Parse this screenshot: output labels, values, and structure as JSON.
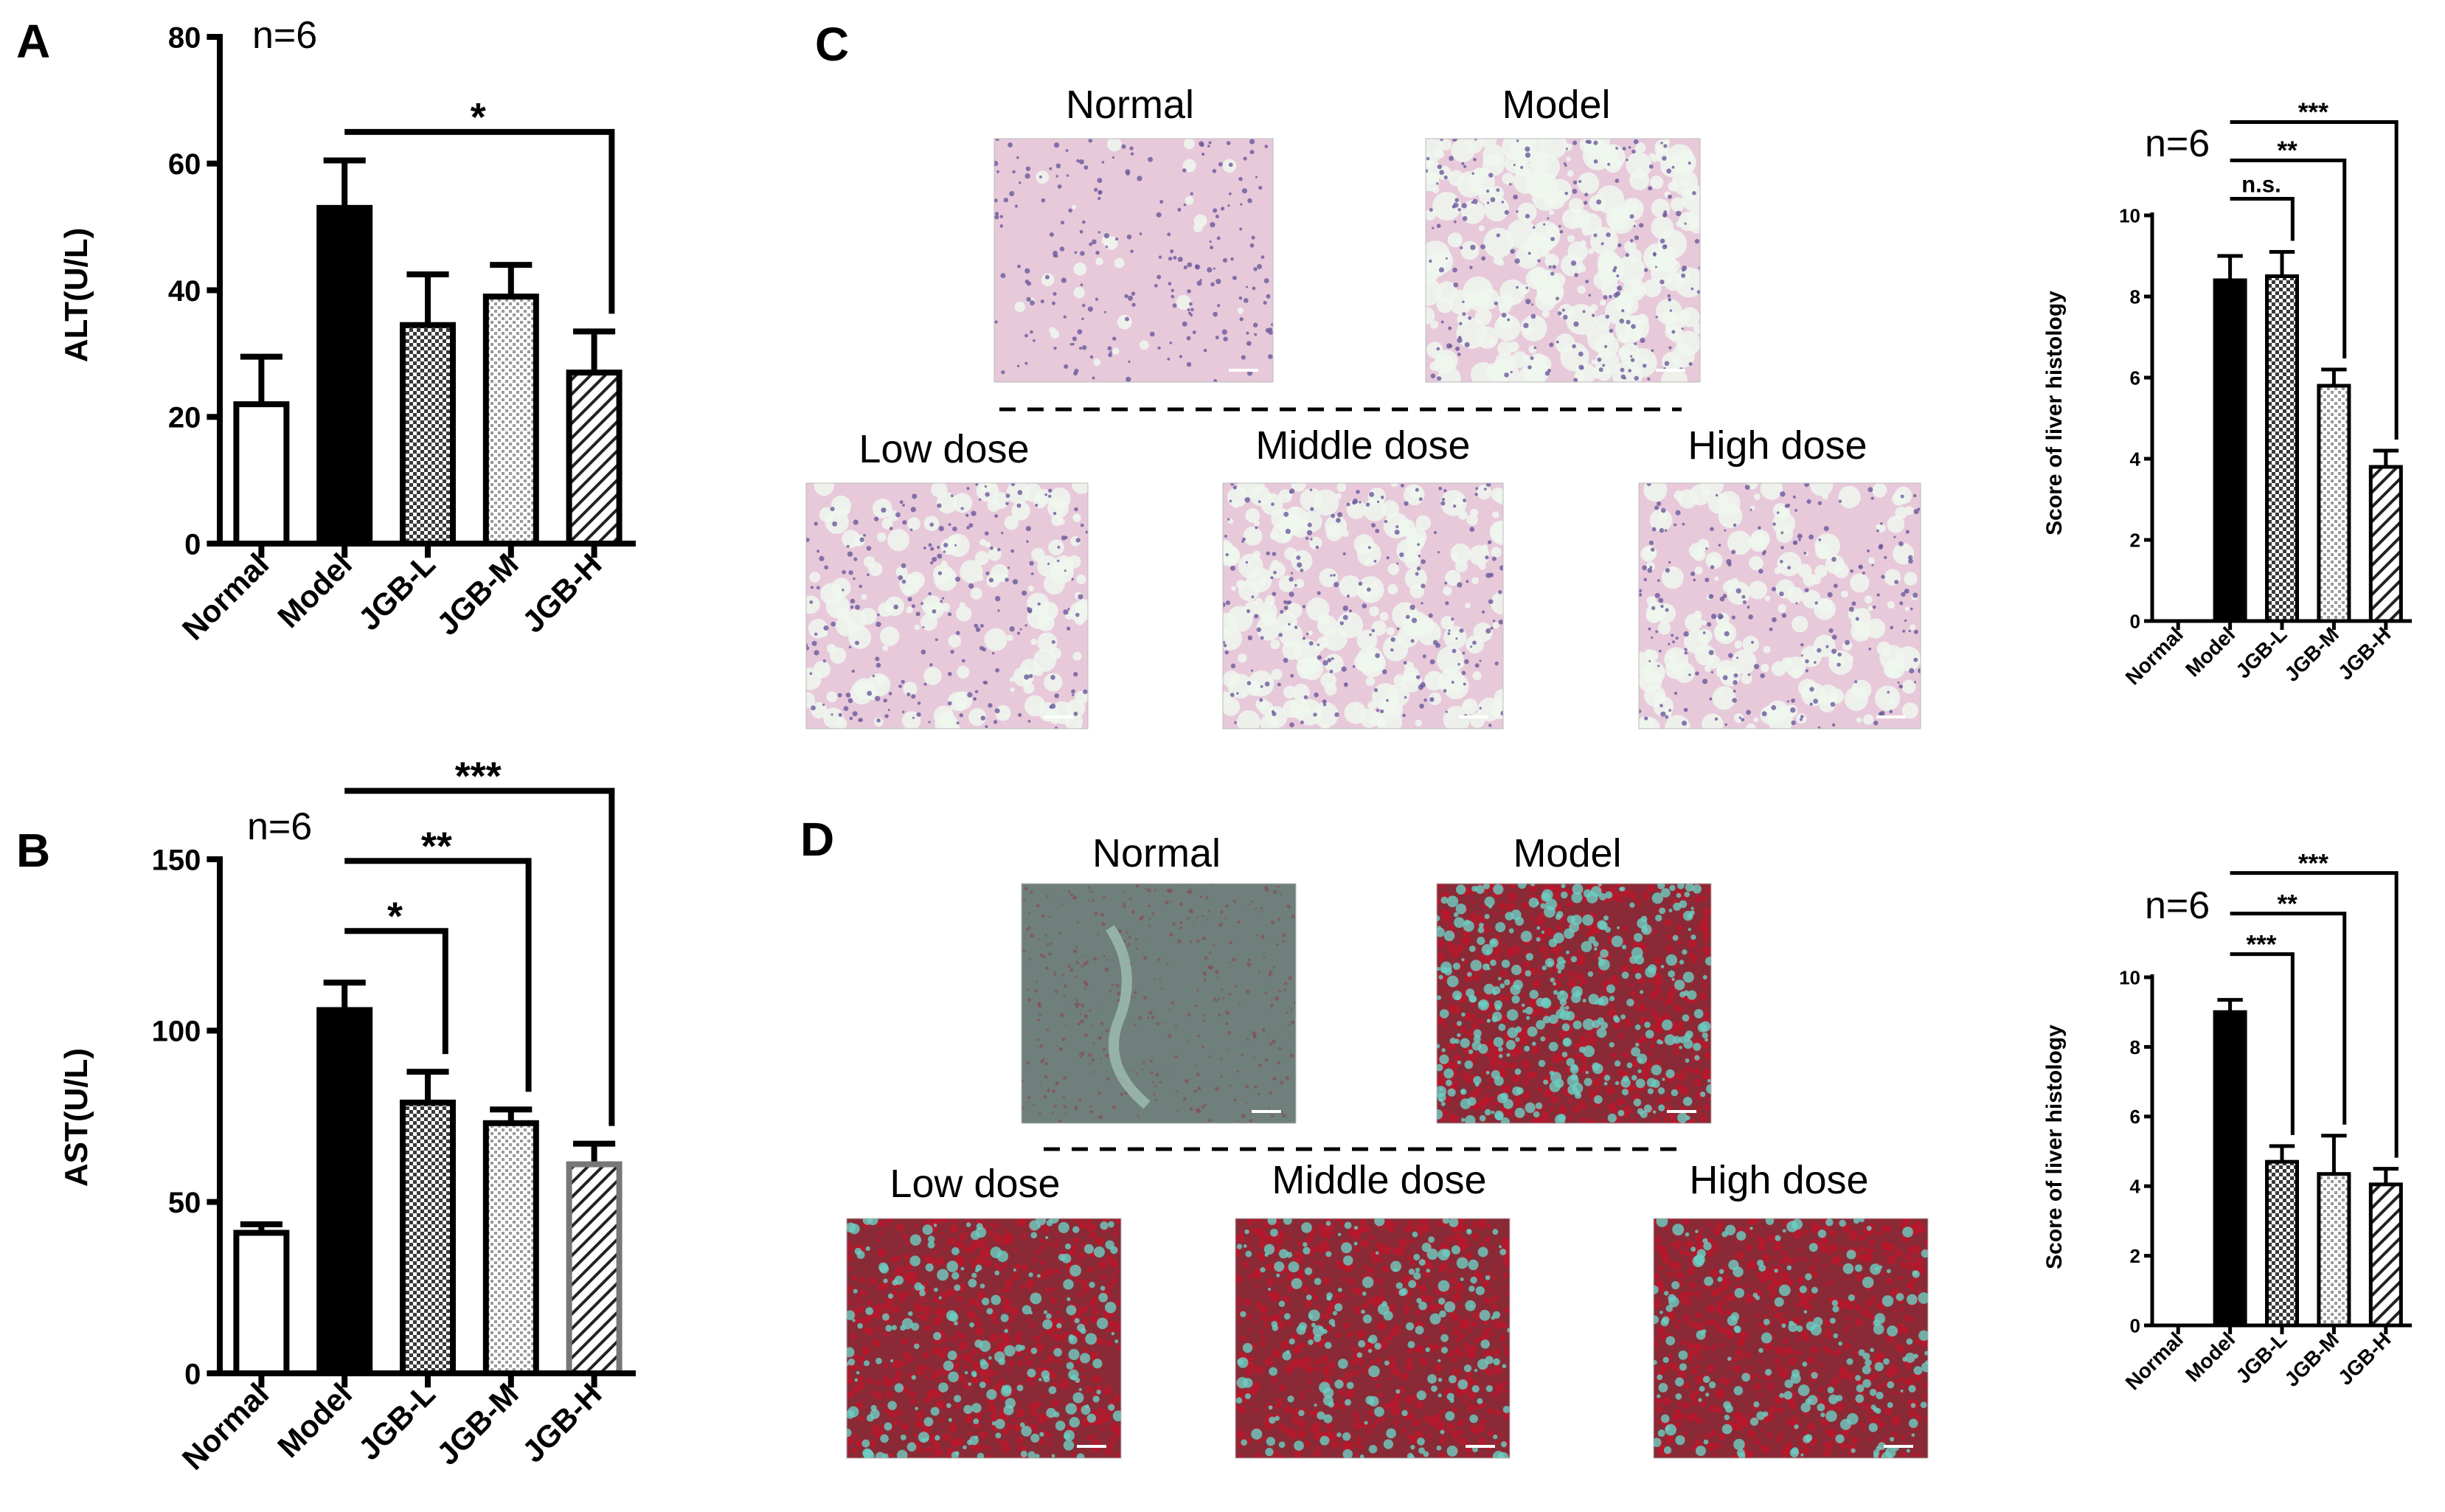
{
  "colors": {
    "he_bg": "#e7c9da",
    "he_nuclei": "#6a5a9c",
    "he_vacuole": "#eef7ef",
    "sirius_bg": "#6f7f7b",
    "sirius_red": "#b8182c",
    "sirius_teal": "#6ccfc4"
  },
  "micrographs": {
    "C": {
      "letter": "C",
      "labels": [
        "Normal",
        "Model",
        "Low dose",
        "Middle dose",
        "High dose"
      ]
    },
    "D": {
      "letter": "D",
      "labels": [
        "Normal",
        "Model",
        "Low dose",
        "Middle dose",
        "High dose"
      ]
    }
  },
  "chart_data": [
    {
      "id": "A",
      "panel_letter": "A",
      "type": "bar",
      "n_label": "n=6",
      "ylabel": "ALT(U/L)",
      "xlabel": "",
      "ylim": [
        0,
        80
      ],
      "yticks": [
        0,
        20,
        40,
        60,
        80
      ],
      "categories": [
        "Normal",
        "Model",
        "JGB-L",
        "JGB-M",
        "JGB-H"
      ],
      "values": [
        22,
        53,
        34.5,
        39,
        27
      ],
      "errors": [
        7.5,
        7.5,
        8,
        5,
        6.5
      ],
      "patterns": [
        "white",
        "black",
        "dense",
        "dots",
        "hatch"
      ],
      "significance": [
        {
          "from": "Model",
          "to": "JGB-H",
          "label": "*"
        }
      ]
    },
    {
      "id": "B",
      "panel_letter": "B",
      "type": "bar",
      "n_label": "n=6",
      "ylabel": "AST(U/L)",
      "xlabel": "",
      "ylim": [
        0,
        150
      ],
      "yticks": [
        0,
        50,
        100,
        150
      ],
      "categories": [
        "Normal",
        "Model",
        "JGB-L",
        "JGB-M",
        "JGB-H"
      ],
      "values": [
        41,
        106,
        79,
        73,
        61
      ],
      "errors": [
        2.5,
        8,
        9,
        4,
        6
      ],
      "patterns": [
        "white",
        "black",
        "dense",
        "dots",
        "hatch"
      ],
      "significance": [
        {
          "from": "Model",
          "to": "JGB-L",
          "label": "*"
        },
        {
          "from": "Model",
          "to": "JGB-M",
          "label": "**"
        },
        {
          "from": "Model",
          "to": "JGB-H",
          "label": "***"
        }
      ]
    },
    {
      "id": "C",
      "panel_letter": "",
      "type": "bar",
      "n_label": "n=6",
      "ylabel": "Score of liver histology",
      "xlabel": "",
      "ylim": [
        0,
        10
      ],
      "yticks": [
        0,
        2,
        4,
        6,
        8,
        10
      ],
      "categories": [
        "Normal",
        "Model",
        "JGB-L",
        "JGB-M",
        "JGB-H"
      ],
      "values": [
        0,
        8.4,
        8.5,
        5.8,
        3.8
      ],
      "errors": [
        0,
        0.6,
        0.6,
        0.4,
        0.4
      ],
      "patterns": [
        "white",
        "black",
        "dense",
        "dots",
        "hatch"
      ],
      "significance": [
        {
          "from": "Model",
          "to": "JGB-L",
          "label": "n.s."
        },
        {
          "from": "Model",
          "to": "JGB-M",
          "label": "**"
        },
        {
          "from": "Model",
          "to": "JGB-H",
          "label": "***"
        }
      ]
    },
    {
      "id": "D",
      "panel_letter": "",
      "type": "bar",
      "n_label": "n=6",
      "ylabel": "Score of liver histology",
      "xlabel": "",
      "ylim": [
        0,
        10
      ],
      "yticks": [
        0,
        2,
        4,
        6,
        8,
        10
      ],
      "categories": [
        "Normal",
        "Model",
        "JGB-L",
        "JGB-M",
        "JGB-H"
      ],
      "values": [
        0,
        9.0,
        4.7,
        4.35,
        4.05
      ],
      "errors": [
        0,
        0.35,
        0.45,
        1.1,
        0.45
      ],
      "patterns": [
        "white",
        "black",
        "dense",
        "dots",
        "hatch"
      ],
      "significance": [
        {
          "from": "Model",
          "to": "JGB-L",
          "label": "***"
        },
        {
          "from": "Model",
          "to": "JGB-M",
          "label": "**"
        },
        {
          "from": "Model",
          "to": "JGB-H",
          "label": "***"
        }
      ]
    }
  ]
}
